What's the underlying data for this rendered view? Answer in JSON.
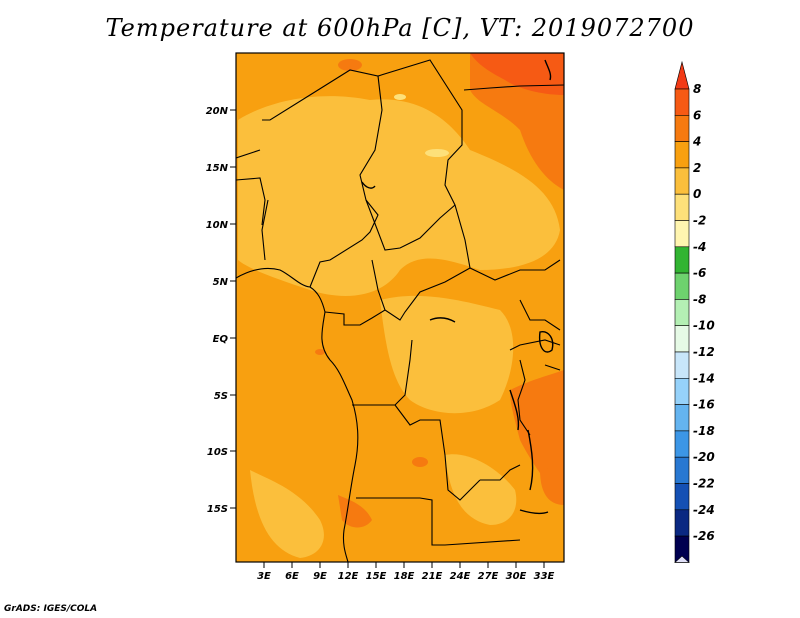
{
  "title": "Temperature at 600hPa [C], VT: 2019072700",
  "credit": "GrADS: IGES/COLA",
  "map": {
    "lat_labels": [
      "20N",
      "15N",
      "10N",
      "5N",
      "EQ",
      "5S",
      "10S",
      "15S"
    ],
    "lon_labels": [
      "3E",
      "6E",
      "9E",
      "12E",
      "15E",
      "18E",
      "21E",
      "24E",
      "27E",
      "30E",
      "33E"
    ]
  },
  "colorbar": {
    "labels": [
      "8",
      "6",
      "4",
      "2",
      "0",
      "-2",
      "-4",
      "-6",
      "-8",
      "-10",
      "-12",
      "-14",
      "-16",
      "-18",
      "-20",
      "-22",
      "-24",
      "-26"
    ],
    "colors": [
      "#f23a16",
      "#f65a14",
      "#f67a10",
      "#f8a010",
      "#fbbf3c",
      "#fde07a",
      "#fff5b0",
      "#32b432",
      "#6ed26e",
      "#b4f0b4",
      "#e6fae6",
      "#c8e6fa",
      "#96d2fa",
      "#64b4f0",
      "#3c96e6",
      "#2878d2",
      "#1450b4",
      "#0a2882",
      "#000050",
      "#e0e0f8"
    ]
  }
}
